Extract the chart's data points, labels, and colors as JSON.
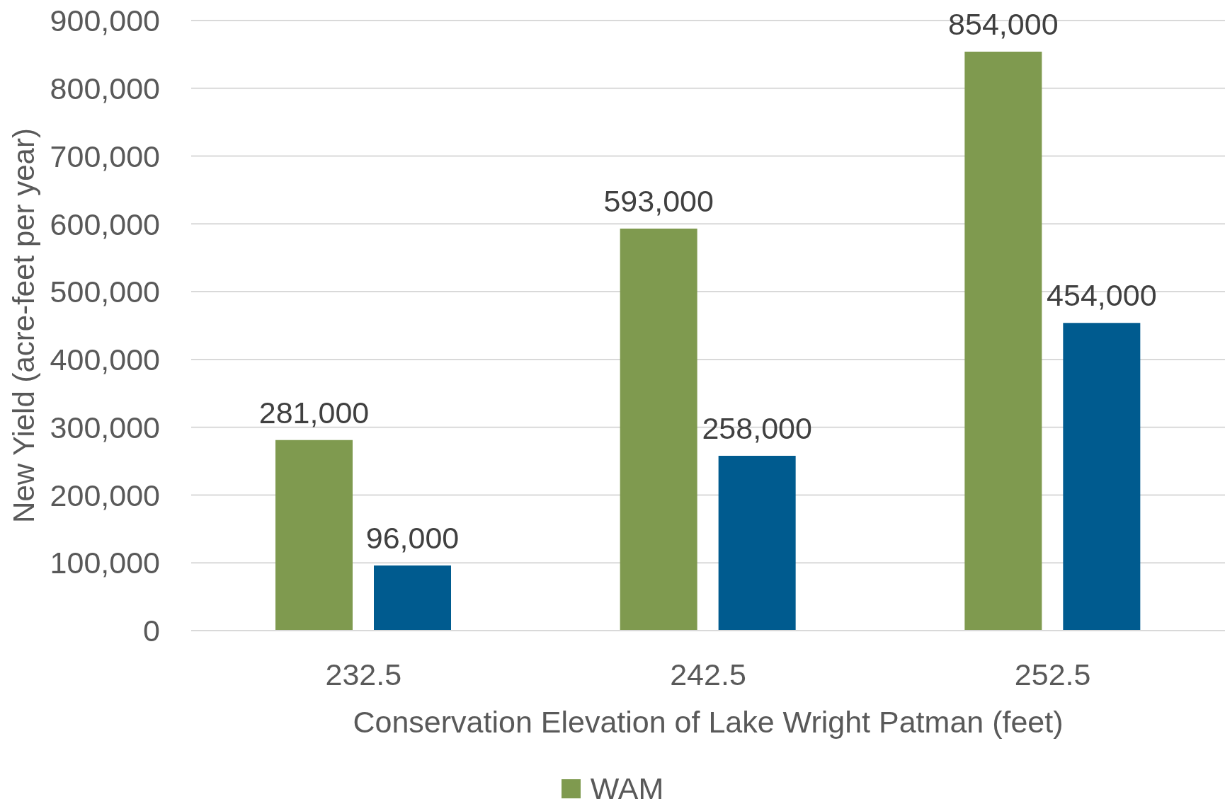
{
  "chart_data": {
    "type": "bar",
    "xlabel": "Conservation Elevation of Lake Wright Patman (feet)",
    "ylabel": "New Yield (acre-feet per year)",
    "categories": [
      "232.5",
      "242.5",
      "252.5"
    ],
    "series": [
      {
        "name": "WAM",
        "color": "#7f9a4f",
        "values": [
          281000,
          593000,
          854000
        ],
        "value_labels": [
          "281,000",
          "593,000",
          "854,000"
        ]
      },
      {
        "color": "#005b8f",
        "values": [
          96000,
          258000,
          454000
        ],
        "value_labels": [
          "96,000",
          "258,000",
          "454,000"
        ]
      }
    ],
    "ylim": [
      0,
      900000
    ],
    "yticks": [
      {
        "value": 0,
        "label": "0"
      },
      {
        "value": 100000,
        "label": "100,000"
      },
      {
        "value": 200000,
        "label": "200,000"
      },
      {
        "value": 300000,
        "label": "300,000"
      },
      {
        "value": 400000,
        "label": "400,000"
      },
      {
        "value": 500000,
        "label": "500,000"
      },
      {
        "value": 600000,
        "label": "600,000"
      },
      {
        "value": 700000,
        "label": "700,000"
      },
      {
        "value": 800000,
        "label": "800,000"
      },
      {
        "value": 900000,
        "label": "900,000"
      }
    ],
    "grid": "y",
    "legend": "bottom"
  }
}
